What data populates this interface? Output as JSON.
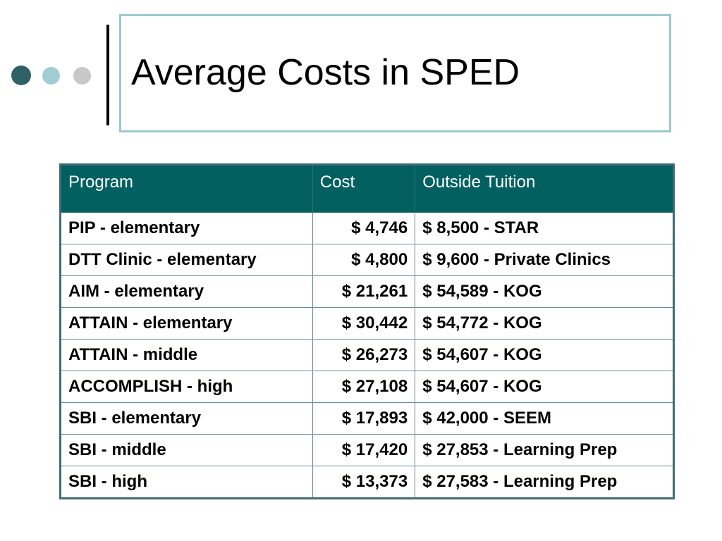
{
  "slide": {
    "title": "Average Costs in SPED"
  },
  "table": {
    "headers": [
      "Program",
      "Cost",
      "Outside Tuition"
    ],
    "rows": [
      [
        "PIP - elementary",
        "$ 4,746",
        "$ 8,500 - STAR"
      ],
      [
        "DTT Clinic - elementary",
        "$ 4,800",
        "$ 9,600 - Private Clinics"
      ],
      [
        "AIM - elementary",
        "$ 21,261",
        "$ 54,589 - KOG"
      ],
      [
        "ATTAIN - elementary",
        "$ 30,442",
        "$ 54,772 - KOG"
      ],
      [
        "ATTAIN - middle",
        "$ 26,273",
        "$ 54,607 - KOG"
      ],
      [
        "ACCOMPLISH - high",
        "$ 27,108",
        "$ 54,607 - KOG"
      ],
      [
        "SBI - elementary",
        "$ 17,893",
        "$ 42,000 - SEEM"
      ],
      [
        "SBI - middle",
        "$ 17,420",
        "$ 27,853 - Learning Prep"
      ],
      [
        "SBI - high",
        "$ 13,373",
        "$ 27,583 - Learning Prep"
      ]
    ]
  },
  "colors": {
    "header_bg": "#036061",
    "title_border": "#9cc8cf",
    "dot_dark": "#2f6266",
    "dot_light": "#9fcdd2",
    "dot_gray": "#c8c8c8"
  }
}
